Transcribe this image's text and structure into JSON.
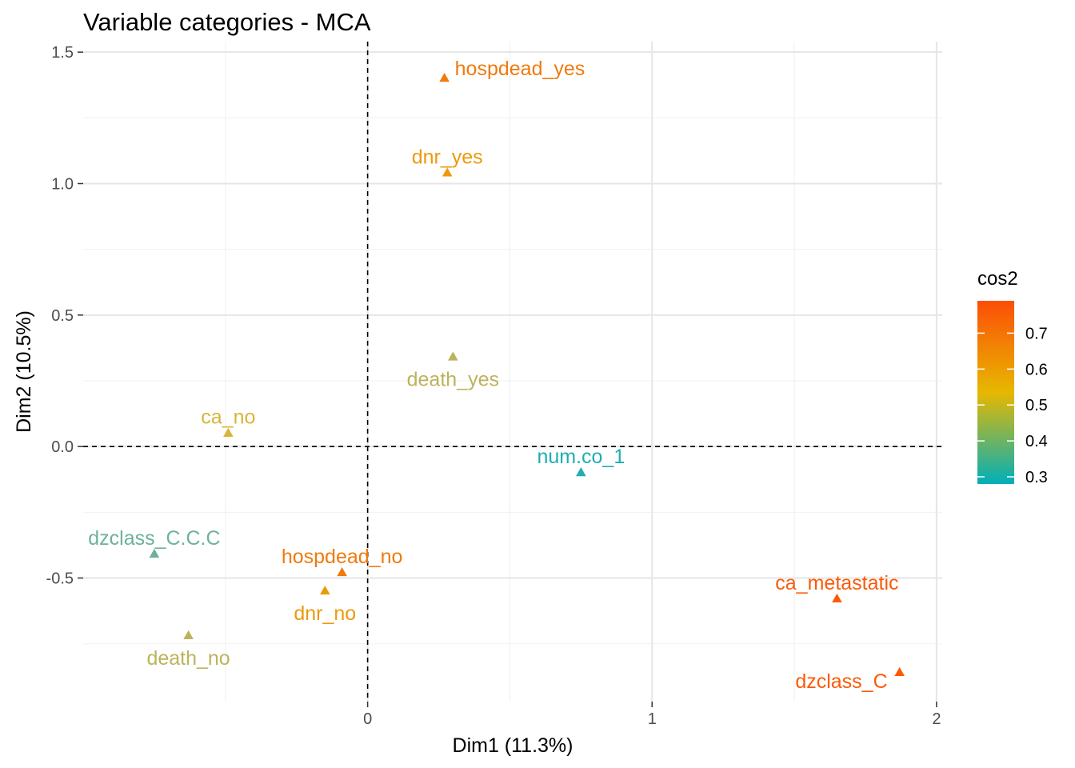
{
  "chart_data": {
    "type": "scatter",
    "title": "Variable categories - MCA",
    "xlabel": "Dim1 (11.3%)",
    "ylabel": "Dim2 (10.5%)",
    "xlim": [
      -1.0,
      2.02
    ],
    "ylim": [
      -0.97,
      1.54
    ],
    "x_ticks": [
      0,
      1,
      2
    ],
    "x_tick_labels": [
      "0",
      "1",
      "2"
    ],
    "y_ticks": [
      -0.5,
      0.0,
      0.5,
      1.0,
      1.5
    ],
    "y_tick_labels": [
      "-0.5",
      "0.0",
      "0.5",
      "1.0",
      "1.5"
    ],
    "grid": true,
    "reference_lines": {
      "x": 0,
      "y": 0,
      "style": "dashed"
    },
    "marker": "triangle",
    "legend": {
      "title": "cos2",
      "placement": "right",
      "type": "gradient",
      "range": [
        0.28,
        0.79
      ],
      "ticks": [
        0.3,
        0.4,
        0.5,
        0.6,
        0.7
      ],
      "tick_labels": [
        "0.3",
        "0.4",
        "0.5",
        "0.6",
        "0.7"
      ],
      "gradient_stops": [
        {
          "value": 0.28,
          "color": "#00AFBB"
        },
        {
          "value": 0.535,
          "color": "#E7B800"
        },
        {
          "value": 0.79,
          "color": "#FC4E07"
        }
      ]
    },
    "points": [
      {
        "label": "hospdead_yes",
        "x": 0.27,
        "y": 1.4,
        "cos2": 0.67,
        "color": "#F07A0D",
        "label_pos": "right"
      },
      {
        "label": "dnr_yes",
        "x": 0.28,
        "y": 1.04,
        "cos2": 0.61,
        "color": "#EC9A0A",
        "label_pos": "top"
      },
      {
        "label": "death_yes",
        "x": 0.3,
        "y": 0.34,
        "cos2": 0.42,
        "color": "#BCB35D",
        "label_pos": "bottom"
      },
      {
        "label": "ca_no",
        "x": -0.49,
        "y": 0.05,
        "cos2": 0.48,
        "color": "#D8B53A",
        "label_pos": "top"
      },
      {
        "label": "num.co_1",
        "x": 0.75,
        "y": -0.1,
        "cos2": 0.3,
        "color": "#1DAEB3",
        "label_pos": "top"
      },
      {
        "label": "dzclass_C.C.C",
        "x": -0.75,
        "y": -0.41,
        "cos2": 0.36,
        "color": "#6DB19B",
        "label_pos": "top"
      },
      {
        "label": "hospdead_no",
        "x": -0.09,
        "y": -0.48,
        "cos2": 0.67,
        "color": "#F07A0D",
        "label_pos": "top"
      },
      {
        "label": "dnr_no",
        "x": -0.15,
        "y": -0.55,
        "cos2": 0.61,
        "color": "#EC9A0A",
        "label_pos": "bottom"
      },
      {
        "label": "death_no",
        "x": -0.63,
        "y": -0.72,
        "cos2": 0.42,
        "color": "#BCB35D",
        "label_pos": "bottom"
      },
      {
        "label": "ca_metastatic",
        "x": 1.65,
        "y": -0.58,
        "cos2": 0.78,
        "color": "#FC5A08",
        "label_pos": "top"
      },
      {
        "label": "dzclass_C",
        "x": 1.87,
        "y": -0.86,
        "cos2": 0.78,
        "color": "#FC5A08",
        "label_pos": "left"
      }
    ]
  }
}
